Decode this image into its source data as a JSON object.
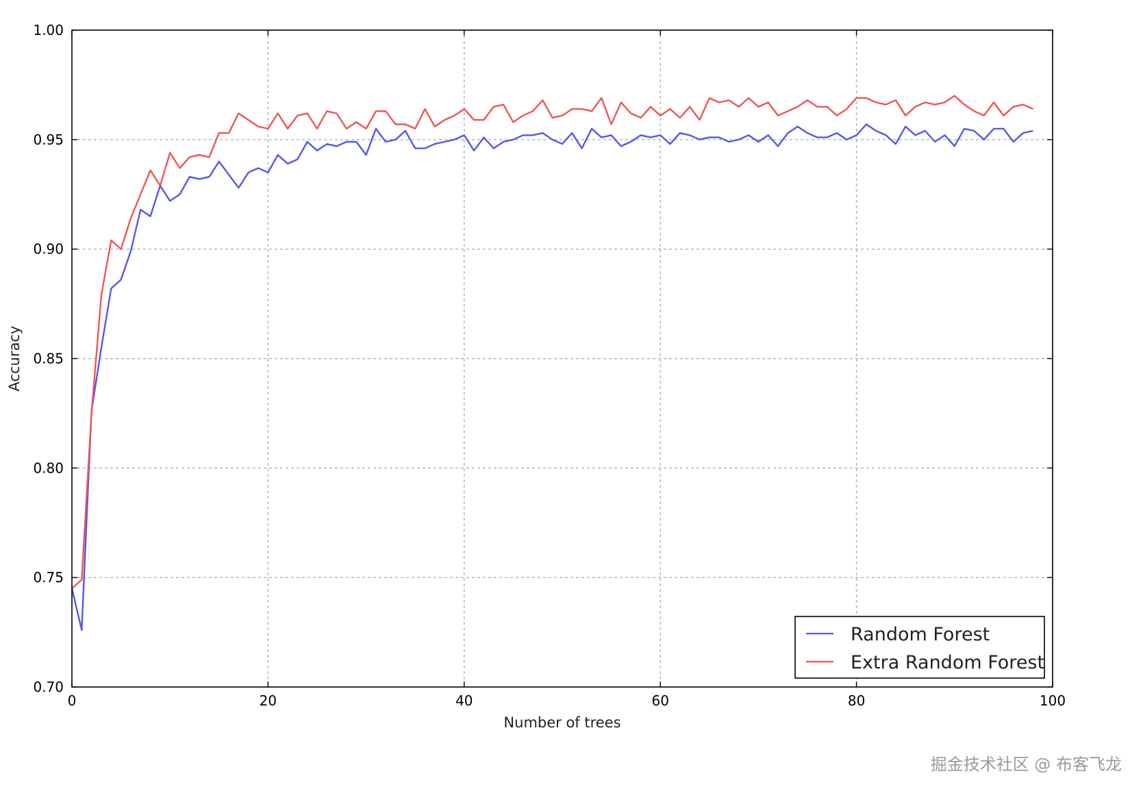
{
  "chart_data": {
    "type": "line",
    "xlabel": "Number of trees",
    "ylabel": "Accuracy",
    "xlim": [
      0,
      100
    ],
    "ylim": [
      0.7,
      1.0
    ],
    "xticks": [
      0,
      20,
      40,
      60,
      80,
      100
    ],
    "xtick_labels": [
      "0",
      "20",
      "40",
      "60",
      "80",
      "100"
    ],
    "yticks": [
      0.7,
      0.75,
      0.8,
      0.85,
      0.9,
      0.95,
      1.0
    ],
    "ytick_labels": [
      "0.70",
      "0.75",
      "0.80",
      "0.85",
      "0.90",
      "0.95",
      "1.00"
    ],
    "grid": true,
    "legend_position": "bottom-right",
    "series": [
      {
        "name": "Random Forest",
        "color": "#5555ee",
        "x": [
          0,
          1,
          2,
          3,
          4,
          5,
          6,
          7,
          8,
          9,
          10,
          11,
          12,
          13,
          14,
          15,
          16,
          17,
          18,
          19,
          20,
          21,
          22,
          23,
          24,
          25,
          26,
          27,
          28,
          29,
          30,
          31,
          32,
          33,
          34,
          35,
          36,
          37,
          38,
          39,
          40,
          41,
          42,
          43,
          44,
          45,
          46,
          47,
          48,
          49,
          50,
          51,
          52,
          53,
          54,
          55,
          56,
          57,
          58,
          59,
          60,
          61,
          62,
          63,
          64,
          65,
          66,
          67,
          68,
          69,
          70,
          71,
          72,
          73,
          74,
          75,
          76,
          77,
          78,
          79,
          80,
          81,
          82,
          83,
          84,
          85,
          86,
          87,
          88,
          89,
          90,
          91,
          92,
          93,
          94,
          95,
          96,
          97,
          98
        ],
        "values": [
          0.745,
          0.726,
          0.826,
          0.855,
          0.882,
          0.886,
          0.899,
          0.918,
          0.915,
          0.929,
          0.922,
          0.925,
          0.933,
          0.932,
          0.933,
          0.94,
          0.934,
          0.928,
          0.935,
          0.937,
          0.935,
          0.943,
          0.939,
          0.941,
          0.949,
          0.945,
          0.948,
          0.947,
          0.949,
          0.949,
          0.943,
          0.955,
          0.949,
          0.95,
          0.954,
          0.946,
          0.946,
          0.948,
          0.949,
          0.95,
          0.952,
          0.945,
          0.951,
          0.946,
          0.949,
          0.95,
          0.952,
          0.952,
          0.953,
          0.95,
          0.948,
          0.953,
          0.946,
          0.955,
          0.951,
          0.952,
          0.947,
          0.949,
          0.952,
          0.951,
          0.952,
          0.948,
          0.953,
          0.952,
          0.95,
          0.951,
          0.951,
          0.949,
          0.95,
          0.952,
          0.949,
          0.952,
          0.947,
          0.953,
          0.956,
          0.953,
          0.951,
          0.951,
          0.953,
          0.95,
          0.952,
          0.957,
          0.954,
          0.952,
          0.948,
          0.956,
          0.952,
          0.954,
          0.949,
          0.952,
          0.947,
          0.955,
          0.954,
          0.95,
          0.955,
          0.955,
          0.949,
          0.953,
          0.954
        ]
      },
      {
        "name": "Extra Random Forest",
        "color": "#ee5555",
        "x": [
          0,
          1,
          2,
          3,
          4,
          5,
          6,
          7,
          8,
          9,
          10,
          11,
          12,
          13,
          14,
          15,
          16,
          17,
          18,
          19,
          20,
          21,
          22,
          23,
          24,
          25,
          26,
          27,
          28,
          29,
          30,
          31,
          32,
          33,
          34,
          35,
          36,
          37,
          38,
          39,
          40,
          41,
          42,
          43,
          44,
          45,
          46,
          47,
          48,
          49,
          50,
          51,
          52,
          53,
          54,
          55,
          56,
          57,
          58,
          59,
          60,
          61,
          62,
          63,
          64,
          65,
          66,
          67,
          68,
          69,
          70,
          71,
          72,
          73,
          74,
          75,
          76,
          77,
          78,
          79,
          80,
          81,
          82,
          83,
          84,
          85,
          86,
          87,
          88,
          89,
          90,
          91,
          92,
          93,
          94,
          95,
          96,
          97,
          98
        ],
        "values": [
          0.745,
          0.749,
          0.825,
          0.879,
          0.904,
          0.9,
          0.914,
          0.925,
          0.936,
          0.929,
          0.944,
          0.937,
          0.942,
          0.943,
          0.942,
          0.953,
          0.953,
          0.962,
          0.959,
          0.956,
          0.955,
          0.962,
          0.955,
          0.961,
          0.962,
          0.955,
          0.963,
          0.962,
          0.955,
          0.958,
          0.955,
          0.963,
          0.963,
          0.957,
          0.957,
          0.955,
          0.964,
          0.956,
          0.959,
          0.961,
          0.964,
          0.959,
          0.959,
          0.965,
          0.966,
          0.958,
          0.961,
          0.963,
          0.968,
          0.96,
          0.961,
          0.964,
          0.964,
          0.963,
          0.969,
          0.957,
          0.967,
          0.962,
          0.96,
          0.965,
          0.961,
          0.964,
          0.96,
          0.965,
          0.959,
          0.969,
          0.967,
          0.968,
          0.965,
          0.969,
          0.965,
          0.967,
          0.961,
          0.963,
          0.965,
          0.968,
          0.965,
          0.965,
          0.961,
          0.964,
          0.969,
          0.969,
          0.967,
          0.966,
          0.968,
          0.961,
          0.965,
          0.967,
          0.966,
          0.967,
          0.97,
          0.966,
          0.963,
          0.961,
          0.967,
          0.961,
          0.965,
          0.966,
          0.964
        ]
      }
    ]
  },
  "watermark": "掘金技术社区 @ 布客飞龙"
}
